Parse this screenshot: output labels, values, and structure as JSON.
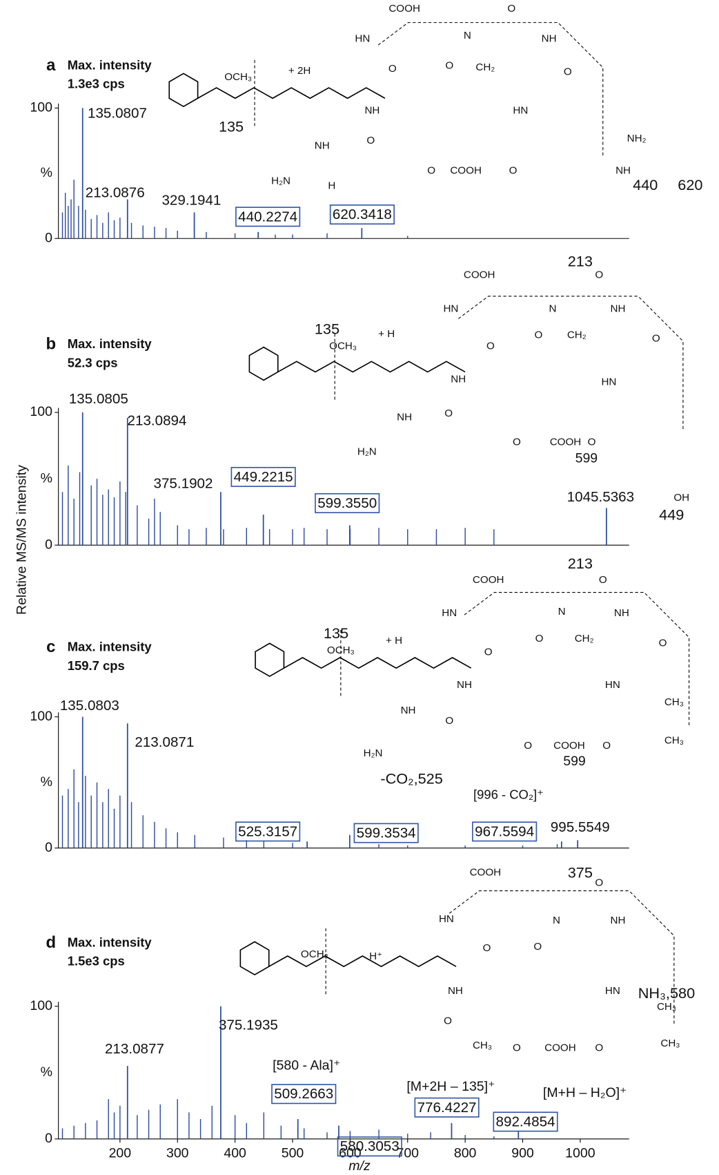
{
  "axis_labels": {
    "y": "Relative MS/MS intensity",
    "x": "m/z"
  },
  "chart_data": [
    {
      "type": "spectrum",
      "panel": "a",
      "title": "Max. intensity",
      "subtitle": "1.3e3 cps",
      "y_label": "%",
      "color": "#2b4aa0",
      "xlim": [
        93,
        1085
      ],
      "ylim": [
        0,
        100
      ],
      "yticks": [
        0,
        100
      ],
      "x": [
        100,
        105,
        110,
        115,
        120,
        128,
        140,
        150,
        160,
        170,
        180,
        190,
        200,
        220,
        240,
        260,
        280,
        300,
        350,
        400,
        470,
        500,
        560,
        700
      ],
      "values": [
        20,
        35,
        25,
        30,
        45,
        25,
        22,
        15,
        18,
        12,
        20,
        14,
        16,
        12,
        10,
        9,
        8,
        6,
        5,
        4,
        3,
        3,
        4,
        2
      ],
      "labeled": {
        "mz": [
          135.0807,
          213.0876,
          329.1941,
          440.2274,
          620.3418
        ],
        "intensity": [
          100,
          30,
          20,
          5,
          8
        ],
        "labels": [
          "135.0807",
          "213.0876",
          "329.1941",
          "440.2274",
          "620.3418"
        ],
        "boxed": [
          false,
          false,
          false,
          true,
          true
        ]
      },
      "annotations": [
        "+ 2H",
        "135",
        "440",
        "620"
      ],
      "structure_labels": [
        "COOH",
        "HN",
        "N",
        "O",
        "NH",
        "O",
        "CH₂",
        "O",
        "O",
        "OCH₃",
        "NH",
        "HN",
        "NH",
        "O",
        "O",
        "COOH",
        "O",
        "NH₂",
        "NH",
        "H₂N",
        "H"
      ]
    },
    {
      "type": "spectrum",
      "panel": "b",
      "title": "Max. intensity",
      "subtitle": "52.3 cps",
      "y_label": "%",
      "color": "#2b4aa0",
      "xlim": [
        93,
        1085
      ],
      "ylim": [
        0,
        100
      ],
      "yticks": [
        0,
        100
      ],
      "x": [
        100,
        110,
        120,
        130,
        150,
        160,
        170,
        180,
        190,
        200,
        210,
        230,
        250,
        260,
        270,
        300,
        320,
        350,
        380,
        420,
        460,
        500,
        520,
        560,
        600,
        650,
        700,
        750,
        800,
        850
      ],
      "values": [
        40,
        60,
        35,
        55,
        45,
        50,
        38,
        42,
        36,
        48,
        40,
        30,
        20,
        35,
        25,
        15,
        12,
        13,
        12,
        13,
        12,
        12,
        13,
        12,
        12,
        13,
        12,
        12,
        13,
        12
      ],
      "labeled": {
        "mz": [
          135.0805,
          213.0894,
          375.1902,
          449.2215,
          599.355,
          1045.5363
        ],
        "intensity": [
          100,
          96,
          40,
          23,
          15,
          28
        ],
        "labels": [
          "135.0805",
          "213.0894",
          "375.1902",
          "449.2215",
          "599.3550",
          "1045.5363"
        ],
        "boxed": [
          false,
          false,
          false,
          true,
          true,
          false
        ]
      },
      "annotations": [
        "135",
        "+ H",
        "213",
        "599",
        "449"
      ],
      "structure_labels": [
        "COOH",
        "HN",
        "N",
        "O",
        "NH",
        "O",
        "CH₂",
        "O",
        "O",
        "OCH₃",
        "NH",
        "HN",
        "NH",
        "O",
        "O",
        "COOH",
        "O",
        "H₂N",
        "OH"
      ]
    },
    {
      "type": "spectrum",
      "panel": "c",
      "title": "Max. intensity",
      "subtitle": "159.7 cps",
      "y_label": "%",
      "color": "#2b4aa0",
      "xlim": [
        93,
        1085
      ],
      "ylim": [
        0,
        100
      ],
      "yticks": [
        0,
        100
      ],
      "x": [
        100,
        110,
        120,
        128,
        140,
        150,
        160,
        170,
        180,
        190,
        200,
        220,
        240,
        260,
        280,
        300,
        330,
        380,
        420,
        450,
        500,
        650,
        700,
        800,
        900,
        960
      ],
      "values": [
        40,
        45,
        60,
        35,
        55,
        40,
        50,
        35,
        45,
        30,
        40,
        35,
        25,
        20,
        15,
        12,
        10,
        8,
        6,
        5,
        4,
        3,
        2,
        2,
        2,
        3
      ],
      "labeled": {
        "mz": [
          135.0803,
          213.0871,
          525.3157,
          599.3534,
          967.5594,
          995.5549
        ],
        "intensity": [
          100,
          95,
          5,
          10,
          5,
          6
        ],
        "labels": [
          "135.0803",
          "213.0871",
          "525.3157",
          "599.3534",
          "967.5594",
          "995.5549"
        ],
        "boxed": [
          false,
          false,
          true,
          true,
          true,
          false
        ]
      },
      "annotations": [
        "135",
        "+ H",
        "213",
        "599",
        "-CO₂,525",
        "[996 - CO₂]⁺"
      ],
      "structure_labels": [
        "COOH",
        "HN",
        "N",
        "O",
        "NH",
        "O",
        "CH₂",
        "O",
        "O",
        "OCH₃",
        "NH",
        "HN",
        "NH",
        "O",
        "O",
        "COOH",
        "O",
        "CH₃",
        "CH₃",
        "H₂N"
      ]
    },
    {
      "type": "spectrum",
      "panel": "d",
      "title": "Max. intensity",
      "subtitle": "1.5e3 cps",
      "y_label": "%",
      "color": "#2b4aa0",
      "xlim": [
        93,
        1085
      ],
      "ylim": [
        0,
        100
      ],
      "yticks": [
        0,
        100
      ],
      "xticks": [
        200,
        300,
        400,
        500,
        600,
        700,
        800,
        900,
        1000
      ],
      "x": [
        100,
        120,
        140,
        160,
        180,
        190,
        200,
        230,
        250,
        270,
        300,
        320,
        340,
        360,
        400,
        420,
        450,
        480,
        520,
        560,
        600,
        650,
        700,
        740,
        800,
        850
      ],
      "values": [
        8,
        10,
        12,
        14,
        30,
        20,
        25,
        18,
        22,
        26,
        30,
        20,
        15,
        25,
        18,
        12,
        20,
        10,
        8,
        5,
        6,
        7,
        4,
        5,
        3,
        2
      ],
      "labeled": {
        "mz": [
          375.1935,
          213.0877,
          509.2663,
          580.3053,
          776.4227,
          892.4854
        ],
        "intensity": [
          100,
          55,
          15,
          10,
          12,
          6
        ],
        "labels": [
          "375.1935",
          "213.0877",
          "509.2663",
          "580.3053",
          "776.4227",
          "892.4854"
        ],
        "boxed": [
          false,
          false,
          true,
          true,
          true,
          true
        ]
      },
      "annotations": [
        "375",
        "H⁺",
        "NH₃,580",
        "[580 - Ala]⁺",
        "[M+2H – 135]⁺",
        "[M+H – H₂O]⁺"
      ],
      "structure_labels": [
        "COOH",
        "HN",
        "N",
        "O",
        "NH",
        "O",
        "O",
        "OCH₃",
        "NH",
        "HN",
        "O",
        "CH₃",
        "O",
        "COOH",
        "O",
        "CH₃",
        "CH₃"
      ]
    }
  ]
}
